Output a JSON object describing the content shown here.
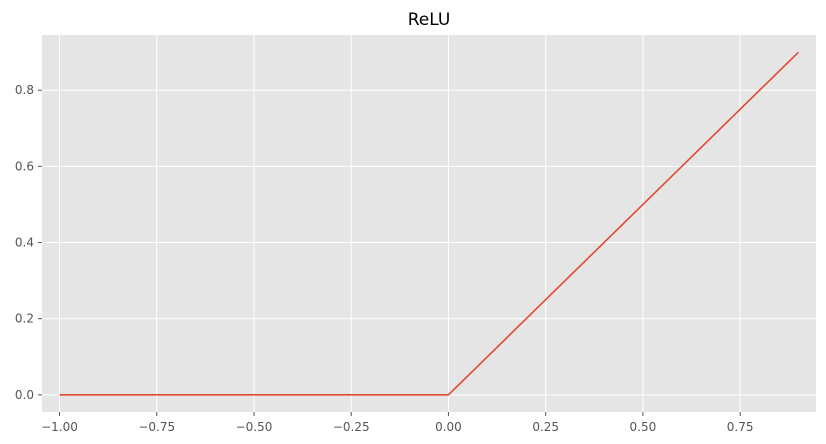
{
  "chart_data": {
    "type": "line",
    "title": "ReLU",
    "xlabel": "",
    "ylabel": "",
    "xlim": [
      -1.045,
      0.945
    ],
    "ylim": [
      -0.045,
      0.945
    ],
    "x_ticks": [
      -1.0,
      -0.75,
      -0.5,
      -0.25,
      0.0,
      0.25,
      0.5,
      0.75
    ],
    "x_tick_labels": [
      "−1.00",
      "−0.75",
      "−0.50",
      "−0.25",
      "0.00",
      "0.25",
      "0.50",
      "0.75"
    ],
    "y_ticks": [
      0.0,
      0.2,
      0.4,
      0.6,
      0.8
    ],
    "y_tick_labels": [
      "0.0",
      "0.2",
      "0.4",
      "0.6",
      "0.8"
    ],
    "grid": true,
    "series": [
      {
        "x": [
          -1.0,
          0.0,
          0.9
        ],
        "y": [
          0.0,
          0.0,
          0.9
        ],
        "color": "#E24A33"
      }
    ],
    "colors": {
      "plot_background": "#E5E5E5",
      "grid": "#FFFFFF",
      "tick": "#555555"
    }
  }
}
